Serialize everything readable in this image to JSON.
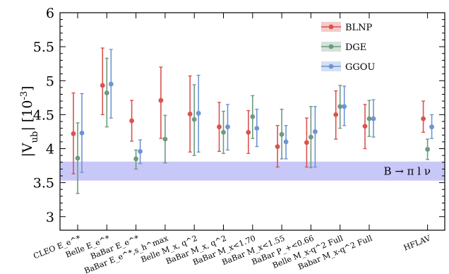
{
  "chart_data": {
    "type": "scatter",
    "title": "",
    "ylabel": "|V_ub| [10^-3]",
    "ylabel_parts": {
      "main": "|V",
      "sub": "ub",
      "close": "| [10",
      "sup": "-3",
      "end": "]"
    },
    "ylim": [
      2.8,
      6.0
    ],
    "yticks": [
      "3",
      "3.5",
      "4",
      "4.5",
      "5",
      "5.5",
      "6"
    ],
    "ytick_values": [
      3,
      3.5,
      4,
      4.5,
      5,
      5.5,
      6
    ],
    "categories": [
      "CLEO E_e^*",
      "Belle E_e^*",
      "BaBar E_e^*",
      "BaBar E_e^*,s_h^max",
      "Belle M_x, q^2",
      "BaBar M_x, q^2",
      "BaBar M_x<1.70",
      "BaBar M_x<1.55",
      "BaBar P_+<0.66",
      "Belle M_x-q^2 Full",
      "Babar M_x-q^2 Full",
      "HFLAV"
    ],
    "category_x_index": [
      0,
      1,
      2,
      3,
      4,
      5,
      6,
      7,
      8,
      9,
      10,
      12
    ],
    "legend": {
      "placement": "top-right"
    },
    "series": [
      {
        "name": "BLNP",
        "color": "#d9534f",
        "values": [
          4.22,
          4.93,
          4.41,
          4.71,
          4.51,
          4.32,
          4.24,
          4.03,
          4.09,
          4.5,
          4.33,
          4.44
        ],
        "err_low": [
          0.59,
          0.43,
          0.3,
          0.56,
          0.56,
          0.36,
          0.31,
          0.3,
          0.36,
          0.36,
          0.33,
          0.2
        ],
        "err_high": [
          0.6,
          0.55,
          0.3,
          0.49,
          0.56,
          0.36,
          0.32,
          0.31,
          0.36,
          0.35,
          0.32,
          0.26
        ]
      },
      {
        "name": "DGE",
        "color": "#6e9a7f",
        "values": [
          3.86,
          4.82,
          3.85,
          4.14,
          4.43,
          4.24,
          4.47,
          4.21,
          4.17,
          4.62,
          4.44,
          3.99
        ],
        "err_low": [
          0.52,
          0.5,
          0.15,
          0.35,
          0.53,
          0.31,
          0.32,
          0.36,
          0.45,
          0.32,
          0.26,
          0.15
        ],
        "err_high": [
          0.52,
          0.51,
          0.13,
          0.35,
          0.51,
          0.31,
          0.31,
          0.37,
          0.45,
          0.31,
          0.27,
          0.15
        ]
      },
      {
        "name": "GGOU",
        "color": "#6f94d4",
        "values": [
          4.23,
          4.95,
          3.96,
          null,
          4.52,
          4.32,
          4.3,
          4.1,
          4.25,
          4.62,
          4.44,
          4.32
        ],
        "err_low": [
          0.58,
          0.5,
          0.18,
          null,
          0.57,
          0.34,
          0.27,
          0.25,
          0.52,
          0.28,
          0.27,
          0.17
        ],
        "err_high": [
          0.58,
          0.51,
          0.17,
          null,
          0.56,
          0.33,
          0.28,
          0.24,
          0.37,
          0.3,
          0.28,
          0.18
        ]
      }
    ],
    "band": {
      "label": "B → π l ν",
      "low": 3.53,
      "high": 3.81,
      "color": "#c8c8f8"
    },
    "grid": false
  }
}
